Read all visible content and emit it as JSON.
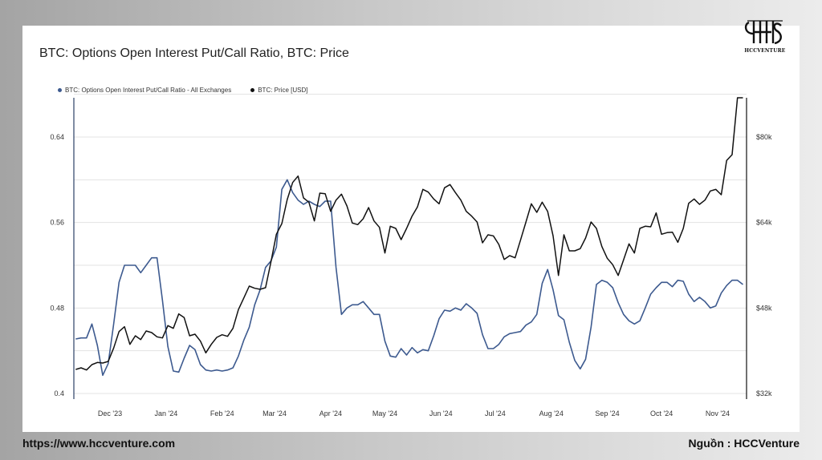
{
  "brand": {
    "logo_text": "HCCVENTURE"
  },
  "footer": {
    "website": "https://www.hccventure.com",
    "source": "Nguồn : HCCVenture"
  },
  "colors": {
    "ratio_line": "#3d5a8f",
    "price_line": "#111111",
    "grid": "#e3e3e3",
    "axis": "#2b3f66"
  },
  "chart_data": {
    "type": "line",
    "title": "BTC: Options Open Interest Put/Call Ratio, BTC: Price",
    "legend_position": "top-left",
    "grid": true,
    "x_axis": {
      "type": "date",
      "range": [
        "2023-11-11",
        "2024-11-17"
      ],
      "tick_labels": [
        "Dec '23",
        "Jan '24",
        "Feb '24",
        "Mar '24",
        "Apr '24",
        "May '24",
        "Jun '24",
        "Jul '24",
        "Aug '24",
        "Sep '24",
        "Oct '24",
        "Nov '24"
      ],
      "tick_dates": [
        "2023-12-01",
        "2024-01-01",
        "2024-02-01",
        "2024-03-01",
        "2024-04-01",
        "2024-05-01",
        "2024-06-01",
        "2024-07-01",
        "2024-08-01",
        "2024-09-01",
        "2024-10-01",
        "2024-11-01"
      ]
    },
    "y_left": {
      "range": [
        0.4,
        0.64
      ],
      "tick_values": [
        0.4,
        0.48,
        0.56,
        0.64
      ],
      "tick_labels": [
        "0.4",
        "0.48",
        "0.56",
        "0.64"
      ]
    },
    "y_right": {
      "range": [
        32000,
        80000
      ],
      "tick_values": [
        32000,
        48000,
        64000,
        80000
      ],
      "tick_labels": [
        "$32k",
        "$48k",
        "$64k",
        "$80k"
      ]
    },
    "series": [
      {
        "name": "BTC: Options Open Interest Put/Call Ratio - All Exchanges",
        "axis": "left",
        "x": [
          "2023-11-12",
          "2023-11-15",
          "2023-11-18",
          "2023-11-21",
          "2023-11-24",
          "2023-11-27",
          "2023-11-30",
          "2023-12-03",
          "2023-12-06",
          "2023-12-09",
          "2023-12-12",
          "2023-12-15",
          "2023-12-18",
          "2023-12-21",
          "2023-12-24",
          "2023-12-27",
          "2023-12-30",
          "2024-01-02",
          "2024-01-05",
          "2024-01-08",
          "2024-01-11",
          "2024-01-14",
          "2024-01-17",
          "2024-01-20",
          "2024-01-23",
          "2024-01-26",
          "2024-01-29",
          "2024-02-01",
          "2024-02-04",
          "2024-02-07",
          "2024-02-10",
          "2024-02-13",
          "2024-02-16",
          "2024-02-19",
          "2024-02-22",
          "2024-02-25",
          "2024-02-28",
          "2024-03-02",
          "2024-03-05",
          "2024-03-08",
          "2024-03-11",
          "2024-03-14",
          "2024-03-17",
          "2024-03-20",
          "2024-03-23",
          "2024-03-26",
          "2024-03-29",
          "2024-04-01",
          "2024-04-04",
          "2024-04-07",
          "2024-04-10",
          "2024-04-13",
          "2024-04-16",
          "2024-04-19",
          "2024-04-22",
          "2024-04-25",
          "2024-04-28",
          "2024-05-01",
          "2024-05-04",
          "2024-05-07",
          "2024-05-10",
          "2024-05-13",
          "2024-05-16",
          "2024-05-19",
          "2024-05-22",
          "2024-05-25",
          "2024-05-28",
          "2024-05-31",
          "2024-06-03",
          "2024-06-06",
          "2024-06-09",
          "2024-06-12",
          "2024-06-15",
          "2024-06-18",
          "2024-06-21",
          "2024-06-24",
          "2024-06-27",
          "2024-06-30",
          "2024-07-03",
          "2024-07-06",
          "2024-07-09",
          "2024-07-12",
          "2024-07-15",
          "2024-07-18",
          "2024-07-21",
          "2024-07-24",
          "2024-07-27",
          "2024-07-30",
          "2024-08-02",
          "2024-08-05",
          "2024-08-08",
          "2024-08-11",
          "2024-08-14",
          "2024-08-17",
          "2024-08-20",
          "2024-08-23",
          "2024-08-26",
          "2024-08-29",
          "2024-09-01",
          "2024-09-04",
          "2024-09-07",
          "2024-09-10",
          "2024-09-13",
          "2024-09-16",
          "2024-09-19",
          "2024-09-22",
          "2024-09-25",
          "2024-09-28",
          "2024-10-01",
          "2024-10-04",
          "2024-10-07",
          "2024-10-10",
          "2024-10-13",
          "2024-10-16",
          "2024-10-19",
          "2024-10-22",
          "2024-10-25",
          "2024-10-28",
          "2024-10-31",
          "2024-11-03",
          "2024-11-06",
          "2024-11-09",
          "2024-11-12",
          "2024-11-15"
        ],
        "values": [
          0.451,
          0.452,
          0.452,
          0.465,
          0.445,
          0.417,
          0.428,
          0.465,
          0.504,
          0.52,
          0.52,
          0.52,
          0.513,
          0.52,
          0.527,
          0.527,
          0.487,
          0.444,
          0.421,
          0.42,
          0.433,
          0.445,
          0.441,
          0.427,
          0.422,
          0.421,
          0.422,
          0.421,
          0.422,
          0.424,
          0.435,
          0.45,
          0.462,
          0.483,
          0.497,
          0.518,
          0.524,
          0.537,
          0.591,
          0.6,
          0.588,
          0.581,
          0.577,
          0.58,
          0.577,
          0.575,
          0.58,
          0.58,
          0.518,
          0.474,
          0.48,
          0.483,
          0.483,
          0.486,
          0.48,
          0.474,
          0.474,
          0.449,
          0.435,
          0.434,
          0.442,
          0.436,
          0.443,
          0.438,
          0.441,
          0.44,
          0.454,
          0.47,
          0.478,
          0.477,
          0.48,
          0.478,
          0.484,
          0.48,
          0.475,
          0.455,
          0.442,
          0.442,
          0.446,
          0.453,
          0.456,
          0.457,
          0.458,
          0.464,
          0.467,
          0.474,
          0.503,
          0.516,
          0.497,
          0.473,
          0.469,
          0.448,
          0.431,
          0.423,
          0.432,
          0.462,
          0.502,
          0.506,
          0.504,
          0.499,
          0.485,
          0.474,
          0.468,
          0.465,
          0.468,
          0.48,
          0.493,
          0.499,
          0.504,
          0.504,
          0.5,
          0.506,
          0.505,
          0.493,
          0.486,
          0.49,
          0.486,
          0.48,
          0.482,
          0.494,
          0.501,
          0.506,
          0.506,
          0.502
        ]
      },
      {
        "name": "BTC: Price [USD]",
        "axis": "right",
        "x": [
          "2023-11-12",
          "2023-11-15",
          "2023-11-18",
          "2023-11-21",
          "2023-11-24",
          "2023-11-27",
          "2023-11-30",
          "2023-12-03",
          "2023-12-06",
          "2023-12-09",
          "2023-12-12",
          "2023-12-15",
          "2023-12-18",
          "2023-12-21",
          "2023-12-24",
          "2023-12-27",
          "2023-12-30",
          "2024-01-02",
          "2024-01-05",
          "2024-01-08",
          "2024-01-11",
          "2024-01-14",
          "2024-01-17",
          "2024-01-20",
          "2024-01-23",
          "2024-01-26",
          "2024-01-29",
          "2024-02-01",
          "2024-02-04",
          "2024-02-07",
          "2024-02-10",
          "2024-02-13",
          "2024-02-16",
          "2024-02-19",
          "2024-02-22",
          "2024-02-25",
          "2024-02-28",
          "2024-03-02",
          "2024-03-05",
          "2024-03-08",
          "2024-03-11",
          "2024-03-14",
          "2024-03-17",
          "2024-03-20",
          "2024-03-23",
          "2024-03-26",
          "2024-03-29",
          "2024-04-01",
          "2024-04-04",
          "2024-04-07",
          "2024-04-10",
          "2024-04-13",
          "2024-04-16",
          "2024-04-19",
          "2024-04-22",
          "2024-04-25",
          "2024-04-28",
          "2024-05-01",
          "2024-05-04",
          "2024-05-07",
          "2024-05-10",
          "2024-05-13",
          "2024-05-16",
          "2024-05-19",
          "2024-05-22",
          "2024-05-25",
          "2024-05-28",
          "2024-05-31",
          "2024-06-03",
          "2024-06-06",
          "2024-06-09",
          "2024-06-12",
          "2024-06-15",
          "2024-06-18",
          "2024-06-21",
          "2024-06-24",
          "2024-06-27",
          "2024-06-30",
          "2024-07-03",
          "2024-07-06",
          "2024-07-09",
          "2024-07-12",
          "2024-07-15",
          "2024-07-18",
          "2024-07-21",
          "2024-07-24",
          "2024-07-27",
          "2024-07-30",
          "2024-08-02",
          "2024-08-05",
          "2024-08-08",
          "2024-08-11",
          "2024-08-14",
          "2024-08-17",
          "2024-08-20",
          "2024-08-23",
          "2024-08-26",
          "2024-08-29",
          "2024-09-01",
          "2024-09-04",
          "2024-09-07",
          "2024-09-10",
          "2024-09-13",
          "2024-09-16",
          "2024-09-19",
          "2024-09-22",
          "2024-09-25",
          "2024-09-28",
          "2024-10-01",
          "2024-10-04",
          "2024-10-07",
          "2024-10-10",
          "2024-10-13",
          "2024-10-16",
          "2024-10-19",
          "2024-10-22",
          "2024-10-25",
          "2024-10-28",
          "2024-10-31",
          "2024-11-03",
          "2024-11-06",
          "2024-11-09",
          "2024-11-12",
          "2024-11-15"
        ],
        "values": [
          36500,
          36800,
          36400,
          37400,
          37800,
          37700,
          38000,
          40500,
          43600,
          44500,
          41200,
          42800,
          42100,
          43700,
          43400,
          42600,
          42400,
          44700,
          44200,
          46900,
          46200,
          42800,
          43100,
          41800,
          39600,
          41200,
          42500,
          43000,
          42700,
          44200,
          47700,
          49900,
          52100,
          51700,
          51500,
          51800,
          56600,
          61800,
          63800,
          68300,
          71500,
          72700,
          68600,
          67800,
          64300,
          69500,
          69400,
          66100,
          68200,
          69300,
          67100,
          63900,
          63600,
          64700,
          66800,
          64300,
          63100,
          58300,
          63300,
          62900,
          60800,
          62900,
          65200,
          66900,
          70200,
          69700,
          68400,
          67500,
          70500,
          71100,
          69600,
          68200,
          66100,
          65200,
          64100,
          60200,
          61700,
          61500,
          59900,
          57100,
          57800,
          57400,
          60700,
          64100,
          67500,
          65900,
          67800,
          66100,
          61500,
          54100,
          61700,
          58700,
          58700,
          59100,
          61100,
          64100,
          62900,
          59500,
          57300,
          56100,
          54100,
          57000,
          60000,
          58300,
          62900,
          63300,
          63200,
          65800,
          61800,
          62100,
          62200,
          60300,
          62900,
          67600,
          68400,
          67400,
          68200,
          69900,
          70200,
          69200,
          75600,
          76700,
          88500,
          87500
        ]
      }
    ]
  }
}
